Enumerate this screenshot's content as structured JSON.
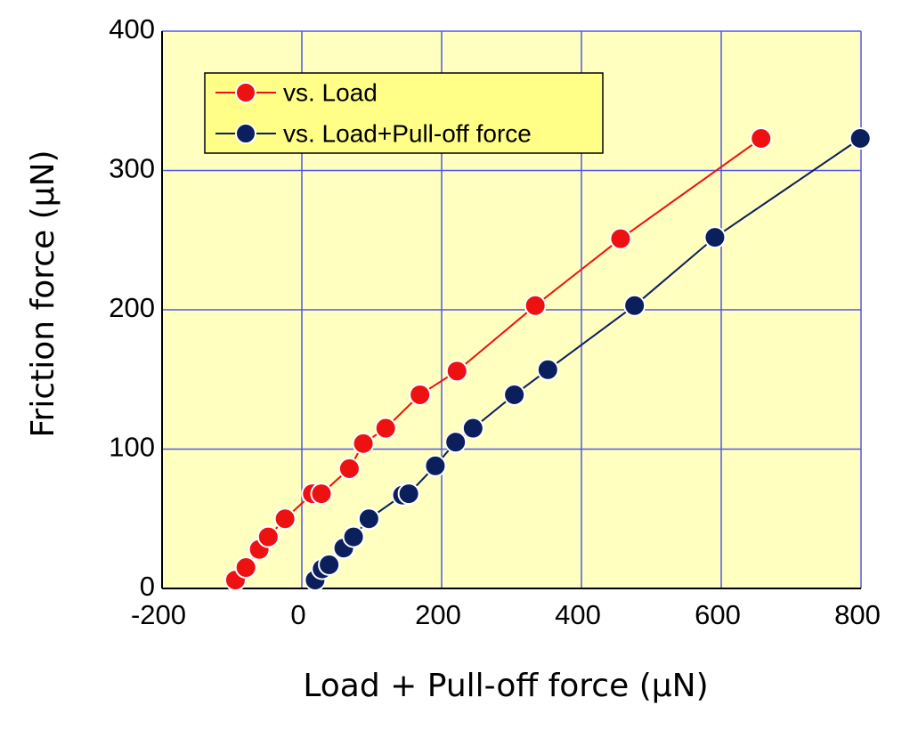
{
  "chart_data": {
    "type": "line",
    "x_label": "Load + Pull-off force (μN)",
    "y_label": "Friction force (μN)",
    "xlim": [
      -200,
      800
    ],
    "ylim": [
      0,
      400
    ],
    "xticks": [
      -200,
      0,
      200,
      400,
      600,
      800
    ],
    "yticks": [
      0,
      100,
      200,
      300,
      400
    ],
    "grid": true,
    "legend": "upper-left",
    "background": "#ffffc0",
    "grid_color": "#5555ee",
    "series": [
      {
        "name": "vs. Load",
        "color": "#ee1111",
        "x": [
          -95,
          -80,
          -61,
          -48,
          -24,
          15,
          28,
          68,
          88,
          120,
          169,
          222,
          334,
          456,
          657
        ],
        "values": [
          6,
          15,
          28,
          37,
          50,
          68,
          68,
          86,
          104,
          115,
          139,
          156,
          203,
          251,
          323
        ]
      },
      {
        "name": "vs. Load+Pull-off force",
        "color": "#0a1f5c",
        "x": [
          19,
          29,
          39,
          60,
          74,
          96,
          144,
          153,
          191,
          220,
          245,
          304,
          352,
          476,
          591,
          799
        ],
        "values": [
          6,
          14,
          17,
          29,
          37,
          50,
          67,
          68,
          88,
          105,
          115,
          139,
          157,
          203,
          252,
          323
        ]
      }
    ]
  }
}
